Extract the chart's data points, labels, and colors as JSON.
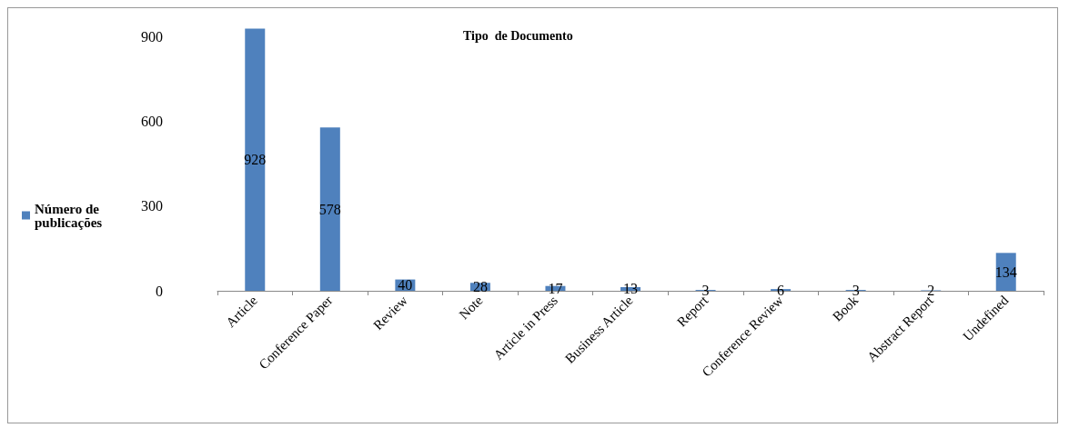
{
  "chart_data": {
    "type": "bar",
    "title": "Tipo  de Documento",
    "categories": [
      "Article",
      "Conference Paper",
      "Review",
      "Note",
      "Article in Press",
      "Business Article",
      "Report",
      "Conference Review",
      "Book",
      "Abstract Report",
      "Undefined"
    ],
    "series": [
      {
        "name": "Número de publicações",
        "color": "#4f81bd",
        "values": [
          928,
          578,
          40,
          28,
          17,
          13,
          3,
          6,
          3,
          2,
          134
        ]
      }
    ],
    "ylim": [
      0,
      1000
    ],
    "yticks": [
      0,
      300,
      600,
      900
    ],
    "grid": false,
    "legend": "left",
    "data_labels": true
  }
}
